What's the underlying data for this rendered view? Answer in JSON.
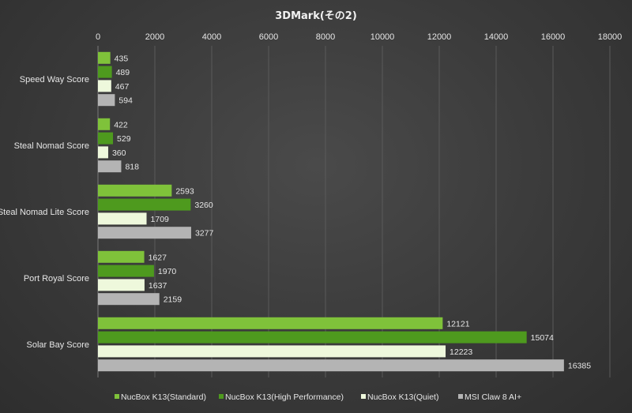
{
  "chart_data": {
    "type": "bar",
    "orientation": "horizontal",
    "title": "3DMark(その2)",
    "categories": [
      "Speed Way Score",
      "Steal Nomad Score",
      "Steal Nomad Lite Score",
      "Port Royal Score",
      "Solar Bay Score"
    ],
    "series": [
      {
        "name": "NucBox K13(Standard)",
        "color": "#7fc23a",
        "values": [
          435,
          422,
          2593,
          1627,
          12121
        ]
      },
      {
        "name": "NucBox K13(High Performance)",
        "color": "#4e9a1e",
        "values": [
          489,
          529,
          3260,
          1970,
          15074
        ]
      },
      {
        "name": "NucBox K13(Quiet)",
        "color": "#eef8dc",
        "values": [
          467,
          360,
          1709,
          1637,
          12223
        ]
      },
      {
        "name": "MSI Claw 8 AI+",
        "color": "#b4b4b4",
        "values": [
          594,
          818,
          3277,
          2159,
          16385
        ]
      }
    ],
    "xlim": [
      0,
      18000
    ],
    "xticks": [
      0,
      2000,
      4000,
      6000,
      8000,
      10000,
      12000,
      14000,
      16000,
      18000
    ],
    "xaxis_position": "top",
    "grid": true,
    "legend_position": "bottom",
    "data_labels": true
  }
}
